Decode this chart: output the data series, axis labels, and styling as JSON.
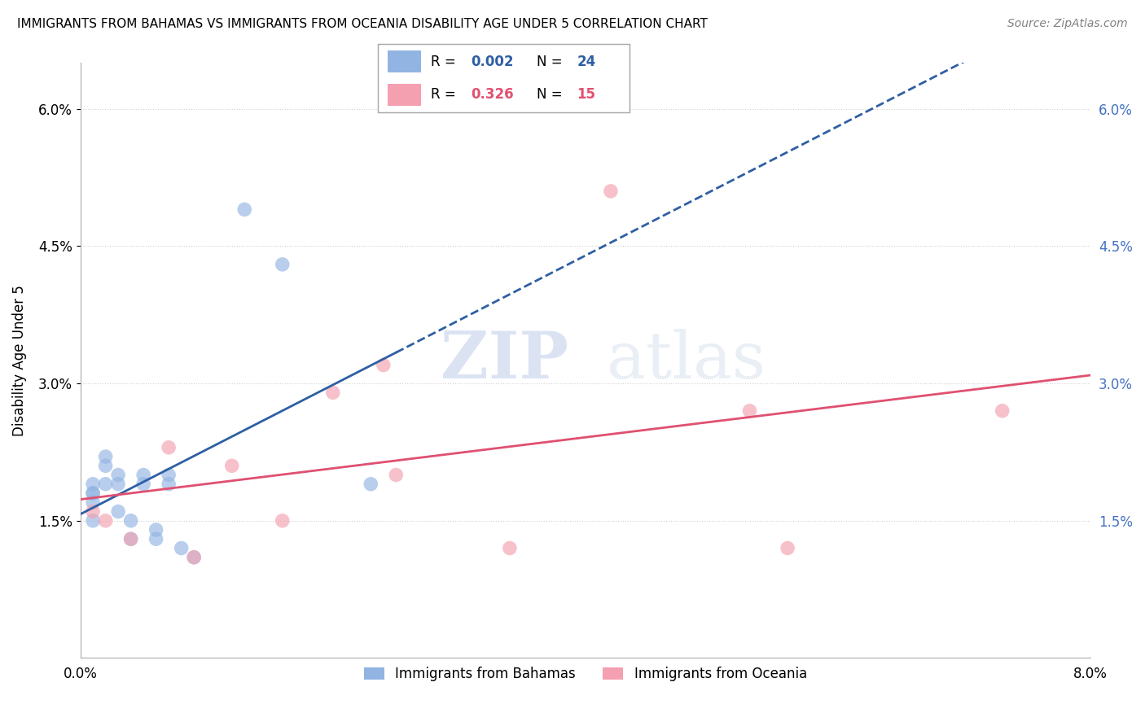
{
  "title": "IMMIGRANTS FROM BAHAMAS VS IMMIGRANTS FROM OCEANIA DISABILITY AGE UNDER 5 CORRELATION CHART",
  "source": "Source: ZipAtlas.com",
  "xlabel": "",
  "ylabel": "Disability Age Under 5",
  "xmin": 0.0,
  "xmax": 0.08,
  "ymin": 0.0,
  "ymax": 0.065,
  "yticks": [
    0.015,
    0.03,
    0.045,
    0.06
  ],
  "ytick_labels": [
    "1.5%",
    "3.0%",
    "4.5%",
    "6.0%"
  ],
  "xticks": [
    0.0,
    0.08
  ],
  "xtick_labels": [
    "0.0%",
    "8.0%"
  ],
  "blue_color": "#92B4E3",
  "pink_color": "#F4A0B0",
  "blue_line_color": "#2E5FA3",
  "pink_line_color": "#E05070",
  "watermark_zip": "ZIP",
  "watermark_atlas": "atlas",
  "blue_x": [
    0.001,
    0.001,
    0.001,
    0.001,
    0.001,
    0.002,
    0.002,
    0.002,
    0.003,
    0.003,
    0.003,
    0.004,
    0.004,
    0.005,
    0.005,
    0.006,
    0.006,
    0.007,
    0.007,
    0.008,
    0.009,
    0.013,
    0.016,
    0.023
  ],
  "blue_y": [
    0.019,
    0.018,
    0.018,
    0.017,
    0.015,
    0.022,
    0.021,
    0.019,
    0.02,
    0.019,
    0.016,
    0.015,
    0.013,
    0.02,
    0.019,
    0.014,
    0.013,
    0.02,
    0.019,
    0.012,
    0.011,
    0.049,
    0.043,
    0.019
  ],
  "pink_x": [
    0.001,
    0.002,
    0.004,
    0.007,
    0.009,
    0.012,
    0.016,
    0.02,
    0.024,
    0.025,
    0.034,
    0.042,
    0.053,
    0.056,
    0.073
  ],
  "pink_y": [
    0.016,
    0.015,
    0.013,
    0.023,
    0.011,
    0.021,
    0.015,
    0.029,
    0.032,
    0.02,
    0.012,
    0.051,
    0.027,
    0.012,
    0.027
  ],
  "background_color": "#ffffff",
  "grid_color": "#d0d0d0"
}
